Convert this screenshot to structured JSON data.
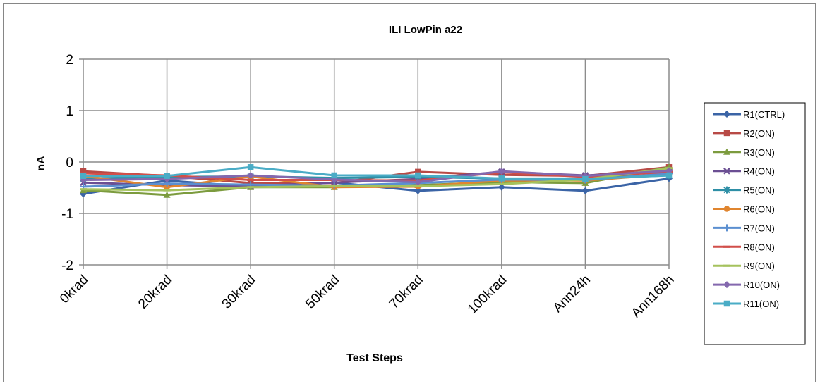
{
  "chart_data": {
    "type": "line",
    "title": "ILI LowPin a22",
    "xlabel": "Test Steps",
    "ylabel": "nA",
    "ylim": [
      -2,
      2
    ],
    "yticks": [
      "2",
      "1",
      "0",
      "-1",
      "-2"
    ],
    "categories": [
      "0krad",
      "20krad",
      "30krad",
      "50krad",
      "70krad",
      "100krad",
      "Ann24h",
      "Ann168h"
    ],
    "grid": true,
    "legend_position": "right",
    "series": [
      {
        "name": "R1(CTRL)",
        "color": "#3B64A6",
        "marker": "diamond",
        "values": [
          -0.62,
          -0.36,
          -0.48,
          -0.4,
          -0.56,
          -0.49,
          -0.56,
          -0.32
        ]
      },
      {
        "name": "R2(ON)",
        "color": "#B84A46",
        "marker": "square",
        "values": [
          -0.18,
          -0.27,
          -0.41,
          -0.41,
          -0.19,
          -0.25,
          -0.27,
          -0.1
        ]
      },
      {
        "name": "R3(ON)",
        "color": "#7C9B3E",
        "marker": "triangle",
        "values": [
          -0.55,
          -0.64,
          -0.49,
          -0.49,
          -0.45,
          -0.39,
          -0.41,
          -0.1
        ]
      },
      {
        "name": "R4(ON)",
        "color": "#6B4F93",
        "marker": "x",
        "values": [
          -0.4,
          -0.45,
          -0.47,
          -0.4,
          -0.33,
          -0.19,
          -0.26,
          -0.19
        ]
      },
      {
        "name": "R5(ON)",
        "color": "#2E8FA6",
        "marker": "asterisk",
        "values": [
          -0.32,
          -0.29,
          -0.28,
          -0.31,
          -0.29,
          -0.32,
          -0.32,
          -0.26
        ]
      },
      {
        "name": "R6(ON)",
        "color": "#E0852F",
        "marker": "circle",
        "values": [
          -0.27,
          -0.49,
          -0.28,
          -0.49,
          -0.48,
          -0.36,
          -0.36,
          -0.24
        ]
      },
      {
        "name": "R7(ON)",
        "color": "#5B8FD0",
        "marker": "plus",
        "values": [
          -0.48,
          -0.42,
          -0.44,
          -0.46,
          -0.41,
          -0.34,
          -0.35,
          -0.22
        ]
      },
      {
        "name": "R8(ON)",
        "color": "#D14F4A",
        "marker": "dash",
        "values": [
          -0.22,
          -0.26,
          -0.35,
          -0.35,
          -0.36,
          -0.2,
          -0.29,
          -0.19
        ]
      },
      {
        "name": "R9(ON)",
        "color": "#A5C25D",
        "marker": "dash",
        "values": [
          -0.53,
          -0.55,
          -0.49,
          -0.47,
          -0.47,
          -0.43,
          -0.34,
          -0.12
        ]
      },
      {
        "name": "R10(ON)",
        "color": "#8468AE",
        "marker": "diamond",
        "values": [
          -0.35,
          -0.33,
          -0.26,
          -0.34,
          -0.39,
          -0.18,
          -0.27,
          -0.17
        ]
      },
      {
        "name": "R11(ON)",
        "color": "#4AACC6",
        "marker": "square",
        "values": [
          -0.27,
          -0.27,
          -0.1,
          -0.26,
          -0.26,
          -0.32,
          -0.33,
          -0.26
        ]
      }
    ]
  }
}
